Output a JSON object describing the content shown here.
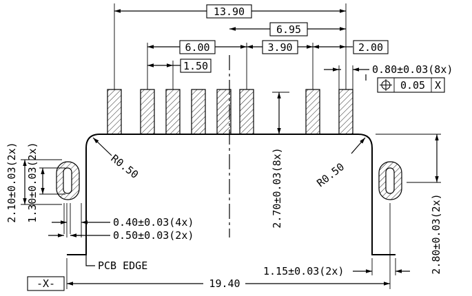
{
  "dims": {
    "overall_top": "13.90",
    "d_6_95": "6.95",
    "d_6_00": "6.00",
    "d_3_90": "3.90",
    "d_2_00": "2.00",
    "d_1_50": "1.50",
    "pitch_tol": "0.80±0.03(8x)",
    "position_tol_value": "0.05",
    "position_tol_datum": "X",
    "slot_h_outer": "2.10±0.03(2x)",
    "slot_h_inner": "1.30±0.03(2x)",
    "radius_left": "R0.50",
    "radius_right": "R0.50",
    "pin_length": "2.70±0.03(8x)",
    "slot_w_inner": "0.40±0.03(4x)",
    "slot_w_outer": "0.50±0.03(2x)",
    "edge_offset": "1.15±0.03(2x)",
    "foot_height": "2.80±0.03(2x)",
    "pcb_edge": "PCB EDGE",
    "datum_x": "-X-",
    "overall_bottom": "19.40"
  },
  "icons": {
    "position_symbol": "position-tolerance-icon"
  }
}
